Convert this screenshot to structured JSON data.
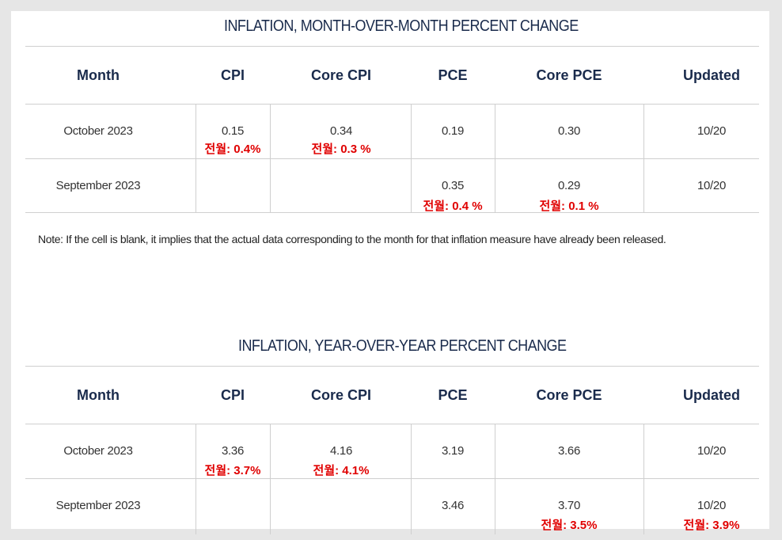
{
  "mom": {
    "title": "INFLATION, MONTH-OVER-MONTH PERCENT CHANGE",
    "headers": [
      "Month",
      "CPI",
      "Core CPI",
      "PCE",
      "Core PCE",
      "Updated"
    ],
    "rows": [
      {
        "month": "October 2023",
        "cpi": "0.15",
        "core_cpi": "0.34",
        "pce": "0.19",
        "core_pce": "0.30",
        "updated": "10/20",
        "cpi_prev": "전월: 0.4%",
        "core_cpi_prev": "전월: 0.3 %"
      },
      {
        "month": "September 2023",
        "cpi": "",
        "core_cpi": "",
        "pce": "0.35",
        "core_pce": "0.29",
        "updated": "10/20",
        "pce_prev": "전월: 0.4 %",
        "core_pce_prev": "전월: 0.1 %"
      }
    ],
    "note": "Note: If the cell is blank, it implies that the actual data corresponding to the month for that inflation measure have already been released."
  },
  "yoy": {
    "title": "INFLATION, YEAR-OVER-YEAR PERCENT CHANGE",
    "headers": [
      "Month",
      "CPI",
      "Core CPI",
      "PCE",
      "Core PCE",
      "Updated"
    ],
    "rows": [
      {
        "month": "October 2023",
        "cpi": "3.36",
        "core_cpi": "4.16",
        "pce": "3.19",
        "core_pce": "3.66",
        "updated": "10/20",
        "cpi_prev": "전월: 3.7%",
        "core_cpi_prev": "전월: 4.1%"
      },
      {
        "month": "September 2023",
        "cpi": "",
        "core_cpi": "",
        "pce": "3.46",
        "core_pce": "3.70",
        "updated": "10/20",
        "core_pce_prev": "전월: 3.5%",
        "updated_prev": "전월: 3.9%"
      }
    ]
  }
}
